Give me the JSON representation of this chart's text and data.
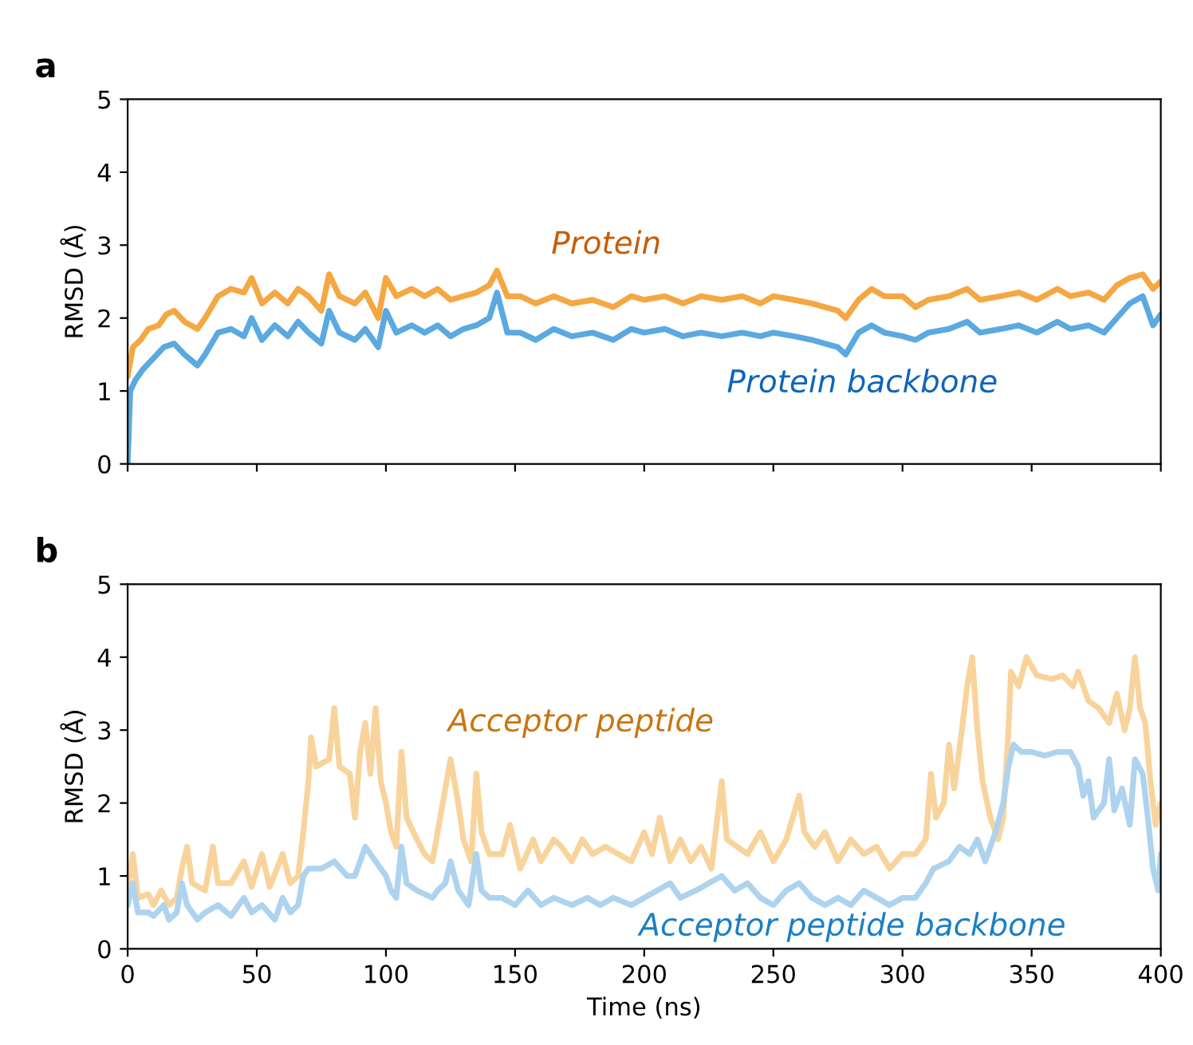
{
  "chart_data": [
    {
      "type": "line",
      "title": "a",
      "ylabel": "RMSD (Å)",
      "xlim": [
        0,
        400
      ],
      "xticks": [
        0,
        50,
        100,
        150,
        200,
        250,
        300,
        350,
        400
      ],
      "ylim": [
        0,
        5
      ],
      "yticks": [
        0,
        1,
        2,
        3,
        4,
        5
      ],
      "tick_labels": "y",
      "grid": false,
      "legend": false,
      "series": [
        {
          "name": "Protein",
          "color": "#f5a742",
          "x": [
            0,
            2,
            5,
            8,
            12,
            15,
            18,
            22,
            27,
            30,
            35,
            40,
            45,
            48,
            52,
            57,
            62,
            66,
            70,
            75,
            78,
            82,
            88,
            92,
            97,
            100,
            104,
            110,
            115,
            120,
            125,
            130,
            135,
            140,
            143,
            147,
            152,
            158,
            165,
            172,
            180,
            188,
            195,
            200,
            208,
            215,
            222,
            230,
            238,
            245,
            250,
            258,
            265,
            270,
            275,
            278,
            283,
            288,
            293,
            300,
            305,
            310,
            318,
            325,
            330,
            338,
            345,
            352,
            360,
            365,
            372,
            378,
            383,
            388,
            393,
            397,
            400
          ],
          "values": [
            1.2,
            1.6,
            1.7,
            1.85,
            1.9,
            2.05,
            2.1,
            1.95,
            1.85,
            2.0,
            2.3,
            2.4,
            2.35,
            2.55,
            2.2,
            2.35,
            2.2,
            2.4,
            2.3,
            2.1,
            2.6,
            2.3,
            2.2,
            2.35,
            2.0,
            2.55,
            2.3,
            2.4,
            2.3,
            2.4,
            2.25,
            2.3,
            2.35,
            2.45,
            2.65,
            2.3,
            2.3,
            2.2,
            2.3,
            2.2,
            2.25,
            2.15,
            2.3,
            2.25,
            2.3,
            2.2,
            2.3,
            2.25,
            2.3,
            2.2,
            2.3,
            2.25,
            2.2,
            2.15,
            2.1,
            2.0,
            2.25,
            2.4,
            2.3,
            2.3,
            2.15,
            2.25,
            2.3,
            2.4,
            2.25,
            2.3,
            2.35,
            2.25,
            2.4,
            2.3,
            2.35,
            2.25,
            2.45,
            2.55,
            2.6,
            2.4,
            2.5
          ]
        },
        {
          "name": "Protein backbone",
          "color": "#5aa9e0",
          "x": [
            0,
            1,
            3,
            6,
            10,
            14,
            18,
            22,
            27,
            30,
            35,
            40,
            45,
            48,
            52,
            57,
            62,
            66,
            70,
            75,
            78,
            82,
            88,
            92,
            97,
            100,
            104,
            110,
            115,
            120,
            125,
            130,
            135,
            140,
            143,
            147,
            152,
            158,
            165,
            172,
            180,
            188,
            195,
            200,
            208,
            215,
            222,
            230,
            238,
            245,
            250,
            258,
            265,
            270,
            275,
            278,
            283,
            288,
            293,
            300,
            305,
            310,
            318,
            325,
            330,
            338,
            345,
            352,
            360,
            365,
            372,
            378,
            383,
            388,
            393,
            397,
            400
          ],
          "values": [
            0.0,
            1.0,
            1.15,
            1.3,
            1.45,
            1.6,
            1.65,
            1.5,
            1.35,
            1.5,
            1.8,
            1.85,
            1.75,
            2.0,
            1.7,
            1.9,
            1.75,
            1.95,
            1.8,
            1.65,
            2.1,
            1.8,
            1.7,
            1.85,
            1.6,
            2.1,
            1.8,
            1.9,
            1.8,
            1.9,
            1.75,
            1.85,
            1.9,
            2.0,
            2.35,
            1.8,
            1.8,
            1.7,
            1.85,
            1.75,
            1.8,
            1.7,
            1.85,
            1.8,
            1.85,
            1.75,
            1.8,
            1.75,
            1.8,
            1.75,
            1.8,
            1.75,
            1.7,
            1.65,
            1.6,
            1.5,
            1.8,
            1.9,
            1.8,
            1.75,
            1.7,
            1.8,
            1.85,
            1.95,
            1.8,
            1.85,
            1.9,
            1.8,
            1.95,
            1.85,
            1.9,
            1.8,
            2.0,
            2.2,
            2.3,
            1.9,
            2.05
          ]
        }
      ]
    },
    {
      "type": "line",
      "title": "b",
      "xlabel": "Time (ns)",
      "ylabel": "RMSD (Å)",
      "xlim": [
        0,
        400
      ],
      "xticks": [
        0,
        50,
        100,
        150,
        200,
        250,
        300,
        350,
        400
      ],
      "ylim": [
        0,
        5
      ],
      "yticks": [
        0,
        1,
        2,
        3,
        4,
        5
      ],
      "grid": false,
      "legend": false,
      "series": [
        {
          "name": "Acceptor peptide",
          "color": "#f8d49c",
          "x": [
            0,
            2,
            4,
            8,
            10,
            13,
            16,
            19,
            21,
            23,
            25,
            30,
            33,
            35,
            40,
            45,
            48,
            52,
            55,
            60,
            63,
            66,
            68,
            70,
            71,
            73,
            78,
            80,
            82,
            86,
            88,
            90,
            92,
            94,
            96,
            98,
            100,
            102,
            104,
            106,
            108,
            112,
            115,
            118,
            120,
            123,
            125,
            128,
            130,
            133,
            135,
            137,
            140,
            145,
            148,
            152,
            157,
            160,
            165,
            168,
            172,
            176,
            180,
            185,
            190,
            195,
            200,
            203,
            206,
            210,
            214,
            218,
            222,
            226,
            230,
            232,
            236,
            240,
            245,
            250,
            255,
            260,
            262,
            266,
            270,
            275,
            280,
            285,
            290,
            295,
            300,
            305,
            309,
            311,
            313,
            316,
            318,
            320,
            323,
            325,
            327,
            329,
            331,
            334,
            337,
            339,
            341,
            342,
            345,
            348,
            352,
            358,
            362,
            366,
            368,
            372,
            376,
            380,
            383,
            386,
            388,
            390,
            392,
            394,
            396,
            398,
            400
          ],
          "values": [
            0.8,
            1.3,
            0.7,
            0.75,
            0.6,
            0.8,
            0.6,
            0.7,
            1.1,
            1.4,
            0.9,
            0.8,
            1.4,
            0.9,
            0.9,
            1.2,
            0.85,
            1.3,
            0.85,
            1.3,
            0.9,
            1.0,
            1.6,
            2.3,
            2.9,
            2.5,
            2.6,
            3.3,
            2.5,
            2.4,
            1.8,
            2.7,
            3.1,
            2.4,
            3.3,
            2.3,
            2.0,
            1.6,
            1.4,
            2.7,
            1.8,
            1.5,
            1.3,
            1.2,
            1.6,
            2.2,
            2.6,
            2.0,
            1.5,
            1.2,
            2.4,
            1.6,
            1.3,
            1.3,
            1.7,
            1.1,
            1.5,
            1.2,
            1.5,
            1.4,
            1.2,
            1.5,
            1.3,
            1.4,
            1.3,
            1.2,
            1.6,
            1.3,
            1.8,
            1.2,
            1.5,
            1.2,
            1.4,
            1.1,
            2.3,
            1.5,
            1.4,
            1.3,
            1.6,
            1.2,
            1.5,
            2.1,
            1.6,
            1.4,
            1.6,
            1.2,
            1.5,
            1.3,
            1.4,
            1.1,
            1.3,
            1.3,
            1.5,
            2.4,
            1.8,
            2.0,
            2.8,
            2.2,
            3.0,
            3.6,
            4.0,
            3.0,
            2.3,
            1.8,
            1.5,
            1.8,
            3.0,
            3.8,
            3.6,
            4.0,
            3.75,
            3.7,
            3.75,
            3.6,
            3.8,
            3.4,
            3.3,
            3.1,
            3.5,
            3.0,
            3.3,
            4.0,
            3.3,
            3.1,
            2.3,
            1.7,
            2.0
          ]
        },
        {
          "name": "Acceptor peptide backbone",
          "color": "#aed3ee",
          "x": [
            0,
            2,
            4,
            8,
            10,
            14,
            16,
            19,
            21,
            23,
            27,
            30,
            35,
            40,
            45,
            48,
            52,
            57,
            60,
            63,
            66,
            68,
            70,
            75,
            80,
            85,
            88,
            92,
            96,
            100,
            102,
            104,
            106,
            108,
            112,
            118,
            120,
            123,
            125,
            128,
            132,
            135,
            137,
            140,
            145,
            150,
            155,
            160,
            165,
            172,
            178,
            183,
            188,
            195,
            200,
            205,
            210,
            214,
            220,
            225,
            230,
            235,
            240,
            245,
            250,
            255,
            260,
            265,
            270,
            275,
            280,
            285,
            290,
            295,
            300,
            305,
            309,
            312,
            318,
            322,
            326,
            329,
            332,
            336,
            339,
            341,
            343,
            346,
            350,
            355,
            360,
            365,
            368,
            370,
            372,
            374,
            378,
            380,
            382,
            385,
            388,
            390,
            393,
            395,
            397,
            399,
            400
          ],
          "values": [
            0.6,
            0.9,
            0.5,
            0.5,
            0.45,
            0.6,
            0.4,
            0.5,
            0.9,
            0.6,
            0.4,
            0.5,
            0.6,
            0.45,
            0.7,
            0.5,
            0.6,
            0.4,
            0.7,
            0.5,
            0.6,
            1.0,
            1.1,
            1.1,
            1.2,
            1.0,
            1.0,
            1.4,
            1.2,
            1.0,
            0.8,
            0.7,
            1.4,
            0.9,
            0.8,
            0.7,
            0.8,
            0.9,
            1.2,
            0.8,
            0.6,
            1.3,
            0.8,
            0.7,
            0.7,
            0.6,
            0.8,
            0.6,
            0.7,
            0.6,
            0.7,
            0.6,
            0.7,
            0.6,
            0.7,
            0.8,
            0.9,
            0.7,
            0.8,
            0.9,
            1.0,
            0.8,
            0.9,
            0.7,
            0.6,
            0.8,
            0.9,
            0.7,
            0.6,
            0.7,
            0.6,
            0.8,
            0.7,
            0.6,
            0.7,
            0.7,
            0.9,
            1.1,
            1.2,
            1.4,
            1.3,
            1.5,
            1.2,
            1.6,
            2.0,
            2.5,
            2.8,
            2.7,
            2.7,
            2.65,
            2.7,
            2.7,
            2.5,
            2.1,
            2.3,
            1.8,
            2.0,
            2.6,
            1.9,
            2.2,
            1.7,
            2.6,
            2.4,
            1.8,
            1.1,
            0.8,
            1.3
          ]
        }
      ]
    }
  ]
}
